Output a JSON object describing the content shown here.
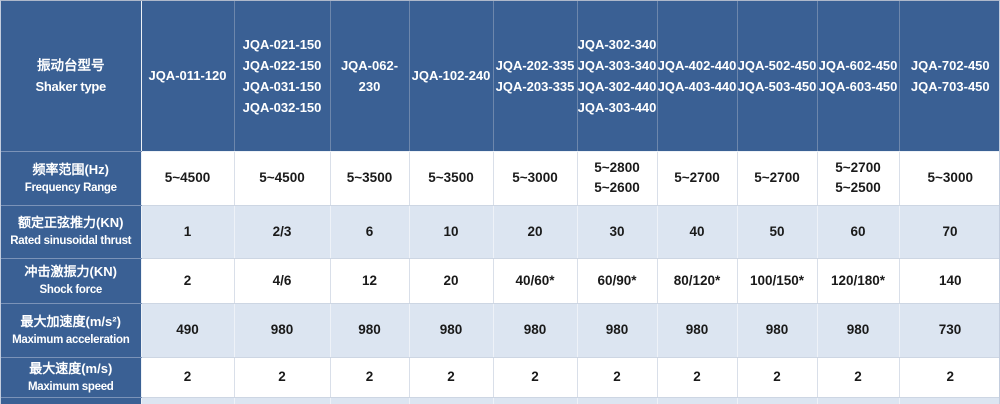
{
  "table": {
    "header": {
      "label_zh": "振动台型号",
      "label_en": "Shaker type",
      "columns": [
        [
          "JQA-011-120"
        ],
        [
          "JQA-021-150",
          "JQA-022-150",
          "JQA-031-150",
          "JQA-032-150"
        ],
        [
          "JQA-062-230"
        ],
        [
          "JQA-102-240"
        ],
        [
          "JQA-202-335",
          "JQA-203-335"
        ],
        [
          "JQA-302-340",
          "JQA-303-340",
          "JQA-302-440",
          "JQA-303-440"
        ],
        [
          "JQA-402-440",
          "JQA-403-440"
        ],
        [
          "JQA-502-450",
          "JQA-503-450"
        ],
        [
          "JQA-602-450",
          "JQA-603-450"
        ],
        [
          "JQA-702-450",
          "JQA-703-450"
        ]
      ]
    },
    "rows": [
      {
        "label_zh": "频率范围(Hz)",
        "label_en": "Frequency Range",
        "values": [
          [
            "5~4500"
          ],
          [
            "5~4500"
          ],
          [
            "5~3500"
          ],
          [
            "5~3500"
          ],
          [
            "5~3000"
          ],
          [
            "5~2800",
            "5~2600"
          ],
          [
            "5~2700"
          ],
          [
            "5~2700"
          ],
          [
            "5~2700",
            "5~2500"
          ],
          [
            "5~3000"
          ]
        ]
      },
      {
        "label_zh": "额定正弦推力(KN)",
        "label_en": "Rated sinusoidal thrust",
        "values": [
          [
            "1"
          ],
          [
            "2/3"
          ],
          [
            "6"
          ],
          [
            "10"
          ],
          [
            "20"
          ],
          [
            "30"
          ],
          [
            "40"
          ],
          [
            "50"
          ],
          [
            "60"
          ],
          [
            "70"
          ]
        ]
      },
      {
        "label_zh": "冲击激振力(KN)",
        "label_en": "Shock force",
        "values": [
          [
            "2"
          ],
          [
            "4/6"
          ],
          [
            "12"
          ],
          [
            "20"
          ],
          [
            "40/60*"
          ],
          [
            "60/90*"
          ],
          [
            "80/120*"
          ],
          [
            "100/150*"
          ],
          [
            "120/180*"
          ],
          [
            "140"
          ]
        ]
      },
      {
        "label_zh": "最大加速度(m/s²)",
        "label_en": "Maximum acceleration",
        "values": [
          [
            "490"
          ],
          [
            "980"
          ],
          [
            "980"
          ],
          [
            "980"
          ],
          [
            "980"
          ],
          [
            "980"
          ],
          [
            "980"
          ],
          [
            "980"
          ],
          [
            "980"
          ],
          [
            "730"
          ]
        ]
      },
      {
        "label_zh": "最大速度(m/s)",
        "label_en": "Maximum speed",
        "values": [
          [
            "2"
          ],
          [
            "2"
          ],
          [
            "2"
          ],
          [
            "2"
          ],
          [
            "2"
          ],
          [
            "2"
          ],
          [
            "2"
          ],
          [
            "2"
          ],
          [
            "2"
          ],
          [
            "2"
          ]
        ]
      }
    ],
    "colors": {
      "header_bg": "#3a6094",
      "header_text": "#ffffff",
      "row_bg": "#ffffff",
      "row_alt_bg": "#dce5f1",
      "body_text": "#1a1a1a",
      "grid_line": "#d9dfe9"
    }
  }
}
